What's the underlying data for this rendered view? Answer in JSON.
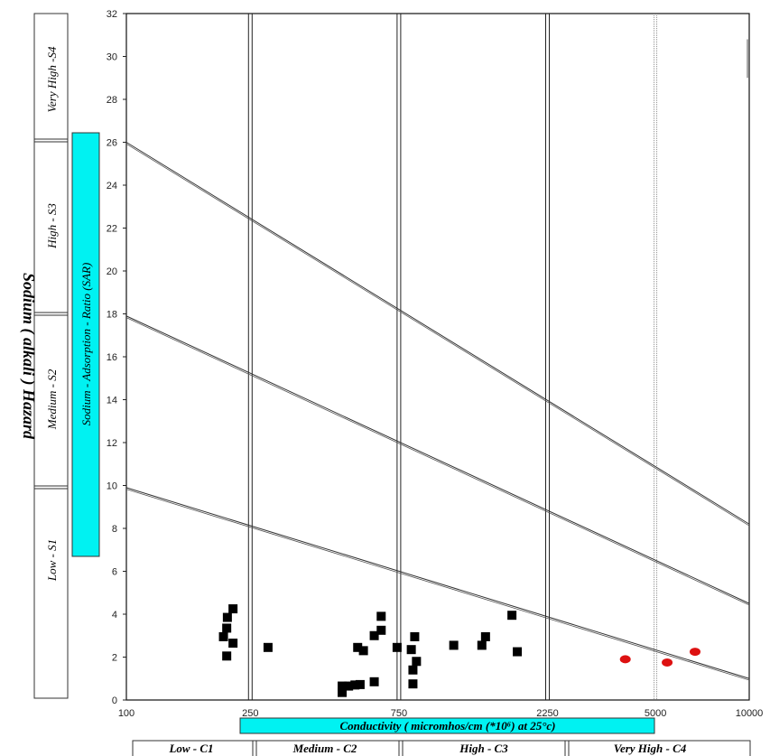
{
  "chart_data": {
    "type": "scatter",
    "x_axis": {
      "label": "Conductivity  ( micromhos/cm  (*10⁶) at 25°c)",
      "ticks": [
        100,
        250,
        750,
        2250,
        5000,
        10000
      ],
      "tick_labels": [
        "100",
        "250",
        "750",
        "2250",
        "5000",
        "10000"
      ],
      "range": [
        100,
        10000
      ]
    },
    "y_axis": {
      "label": "Sodium - Adsorption - Ratio (SAR)",
      "range": [
        0,
        32
      ],
      "ticks": [
        0,
        2,
        4,
        6,
        8,
        10,
        12,
        14,
        16,
        18,
        20,
        22,
        24,
        26,
        28,
        30,
        32
      ],
      "tick_labels": [
        "0",
        "2",
        "4",
        "6",
        "8",
        "10",
        "12",
        "14",
        "16",
        "18",
        "20",
        "22",
        "24",
        "26",
        "28",
        "30",
        "32"
      ]
    },
    "hazard_title": "Sodium ( alkali ) Hazard",
    "salinity_classes": [
      "Low - C1",
      "Medium - C2",
      "High - C3",
      "Very High - C4"
    ],
    "sodium_classes": [
      "Very High -S4",
      "High - S3",
      "Medium - S2",
      "Low - S1"
    ],
    "class_lines": [
      {
        "y_at_100": 26.0,
        "y_at_10000": 8.2
      },
      {
        "y_at_100": 17.9,
        "y_at_10000": 4.5
      },
      {
        "y_at_100": 9.9,
        "y_at_10000": 1.0
      }
    ],
    "series": [
      {
        "marker": "square",
        "color": "#000000",
        "points": [
          [
            205,
            2.95
          ],
          [
            210,
            3.35
          ],
          [
            211,
            3.85
          ],
          [
            210,
            2.05
          ],
          [
            220,
            4.25
          ],
          [
            220,
            2.65
          ],
          [
            285,
            2.45
          ],
          [
            493,
            0.65
          ],
          [
            493,
            0.35
          ],
          [
            517,
            0.65
          ],
          [
            542,
            0.7
          ],
          [
            553,
            2.45
          ],
          [
            563,
            0.72
          ],
          [
            577,
            2.3
          ],
          [
            625,
            3.0
          ],
          [
            625,
            0.85
          ],
          [
            658,
            3.9
          ],
          [
            658,
            3.25
          ],
          [
            740,
            2.45
          ],
          [
            822,
            2.35
          ],
          [
            832,
            1.4
          ],
          [
            832,
            0.75
          ],
          [
            843,
            2.95
          ],
          [
            854,
            1.8
          ],
          [
            1125,
            2.55
          ],
          [
            1385,
            2.55
          ],
          [
            1423,
            2.95
          ],
          [
            1730,
            3.95
          ],
          [
            1800,
            2.25
          ]
        ]
      },
      {
        "marker": "circle",
        "color": "#dd1111",
        "points": [
          [
            4000,
            1.9
          ],
          [
            5450,
            1.75
          ],
          [
            6700,
            2.25
          ]
        ]
      }
    ]
  }
}
